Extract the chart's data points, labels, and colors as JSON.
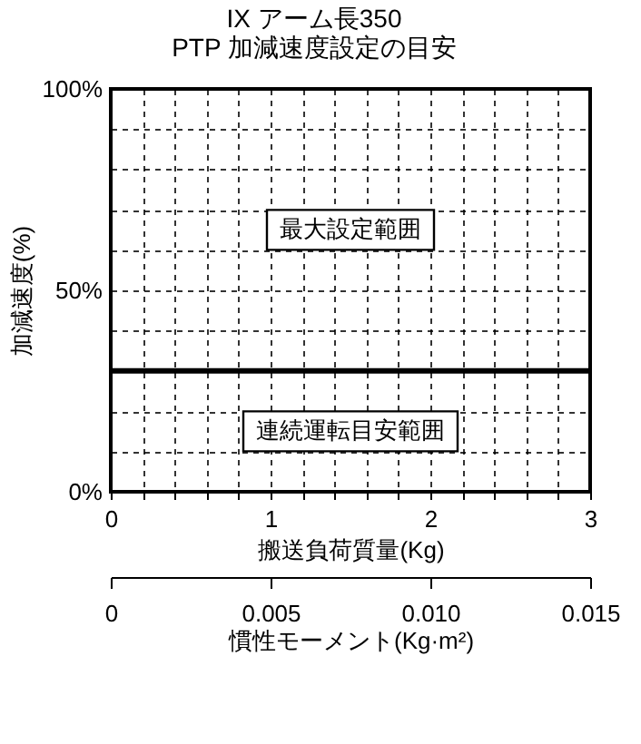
{
  "chart_data": {
    "type": "line",
    "title": "IX アーム長350",
    "subtitle": "PTP 加減速度設定の目安",
    "xlabel": "搬送負荷質量(Kg)",
    "ylabel": "加減速度(%)",
    "x2label": "慣性モーメント(Kg·m²)",
    "ref_lines": [
      {
        "axis": "y",
        "value": 30,
        "color": "#000000"
      }
    ],
    "annotations": [
      "最大設定範囲",
      "連続運転目安範囲"
    ],
    "xlim": [
      0,
      3
    ],
    "xticks": [
      0,
      {
        "value": 0.2,
        "label": null
      },
      {
        "value": 0.4,
        "label": null
      },
      {
        "value": 0.6,
        "label": null
      },
      {
        "value": 0.8,
        "label": null
      },
      1,
      {
        "value": 1.2,
        "label": null
      },
      {
        "value": 1.4,
        "label": null
      },
      {
        "value": 1.6,
        "label": null
      },
      {
        "value": 1.8,
        "label": null
      },
      2,
      {
        "value": 2.2,
        "label": null
      },
      {
        "value": 2.4,
        "label": null
      },
      {
        "value": 2.6,
        "label": null
      },
      {
        "value": 2.8,
        "label": null
      },
      3
    ],
    "ylim": [
      0,
      100
    ],
    "yticks": [
      {
        "value": 0,
        "label": "0%"
      },
      {
        "value": 10,
        "label": null
      },
      {
        "value": 20,
        "label": null
      },
      {
        "value": 30,
        "label": null
      },
      {
        "value": 40,
        "label": null
      },
      {
        "value": 50,
        "label": "50%"
      },
      {
        "value": 60,
        "label": null
      },
      {
        "value": 70,
        "label": null
      },
      {
        "value": 80,
        "label": null
      },
      {
        "value": 90,
        "label": null
      },
      {
        "value": 100,
        "label": "100%"
      }
    ],
    "x2lim": [
      0,
      0.015
    ],
    "x2ticks": [
      0,
      0.005,
      {
        "value": 0.01,
        "label": "0.010"
      },
      0.015
    ],
    "grid": true
  }
}
